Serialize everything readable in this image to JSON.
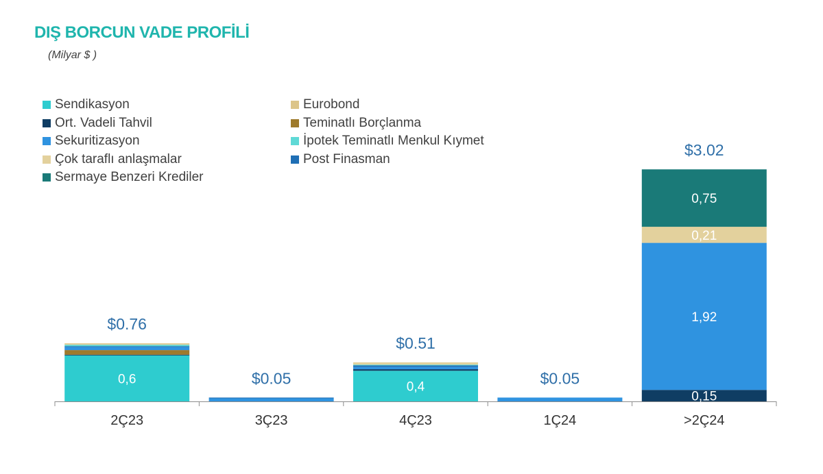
{
  "title": "DIŞ BORCUN VADE PROFİLİ",
  "unit": "(Milyar $ )",
  "chart_data": {
    "type": "bar",
    "stacked": true,
    "categories": [
      "2Ç23",
      "3Ç23",
      "4Ç23",
      "1Ç24",
      ">2Ç24"
    ],
    "totals": [
      0.76,
      0.05,
      0.51,
      0.05,
      3.02
    ],
    "total_labels": [
      "$0.76",
      "$0.05",
      "$0.51",
      "$0.05",
      "$3.02"
    ],
    "ylim": [
      0,
      3.5
    ],
    "legend_position": "top-left",
    "series": [
      {
        "name": "Sendikasyon",
        "color": "#2ecccf",
        "values": [
          0.6,
          0,
          0.4,
          0,
          0
        ],
        "labels": [
          "0,6",
          "",
          "0,4",
          "",
          ""
        ]
      },
      {
        "name": "Ort. Vadeli Tahvil",
        "color": "#0f3d63",
        "values": [
          0.01,
          0,
          0.02,
          0,
          0.15
        ],
        "labels": [
          "",
          "",
          "",
          "",
          "0,15"
        ]
      },
      {
        "name": "Teminatlı Borçlanma",
        "color": "#9e7a2b",
        "values": [
          0.06,
          0,
          0,
          0,
          0
        ],
        "labels": [
          "",
          "",
          "",
          "",
          ""
        ]
      },
      {
        "name": "Sekuritizasyon",
        "color": "#2f93e0",
        "values": [
          0.04,
          0.04,
          0.03,
          0.05,
          1.92
        ],
        "labels": [
          "",
          "",
          "",
          "",
          "1,92"
        ]
      },
      {
        "name": "Post Finasman",
        "color": "#1f6fb5",
        "values": [
          0.01,
          0.01,
          0.02,
          0,
          0
        ],
        "labels": [
          "",
          "",
          "",
          "",
          ""
        ]
      },
      {
        "name": "İpotek Teminatlı Menkul Kıymet",
        "color": "#5fd9d6",
        "values": [
          0.02,
          0,
          0.01,
          0,
          0
        ],
        "labels": [
          "",
          "",
          "",
          "",
          ""
        ]
      },
      {
        "name": "Eurobond",
        "color": "#dcc58a",
        "values": [
          0.01,
          0,
          0,
          0,
          0
        ],
        "labels": [
          "",
          "",
          "",
          "",
          ""
        ]
      },
      {
        "name": "Çok taraflı anlaşmalar",
        "color": "#e3d19d",
        "values": [
          0.01,
          0,
          0.03,
          0,
          0.21
        ],
        "labels": [
          "",
          "",
          "",
          "",
          "0,21"
        ]
      },
      {
        "name": "Sermaye Benzeri Krediler",
        "color": "#1a7a78",
        "values": [
          0,
          0,
          0,
          0,
          0.75
        ],
        "labels": [
          "",
          "",
          "",
          "",
          "0,75"
        ]
      }
    ],
    "legend_order": [
      "Sendikasyon",
      "Eurobond",
      "Ort. Vadeli Tahvil",
      "Teminatlı Borçlanma",
      "Sekuritizasyon",
      "İpotek Teminatlı Menkul Kıymet",
      "Çok taraflı anlaşmalar",
      "Post Finasman",
      "Sermaye Benzeri Krediler"
    ]
  }
}
